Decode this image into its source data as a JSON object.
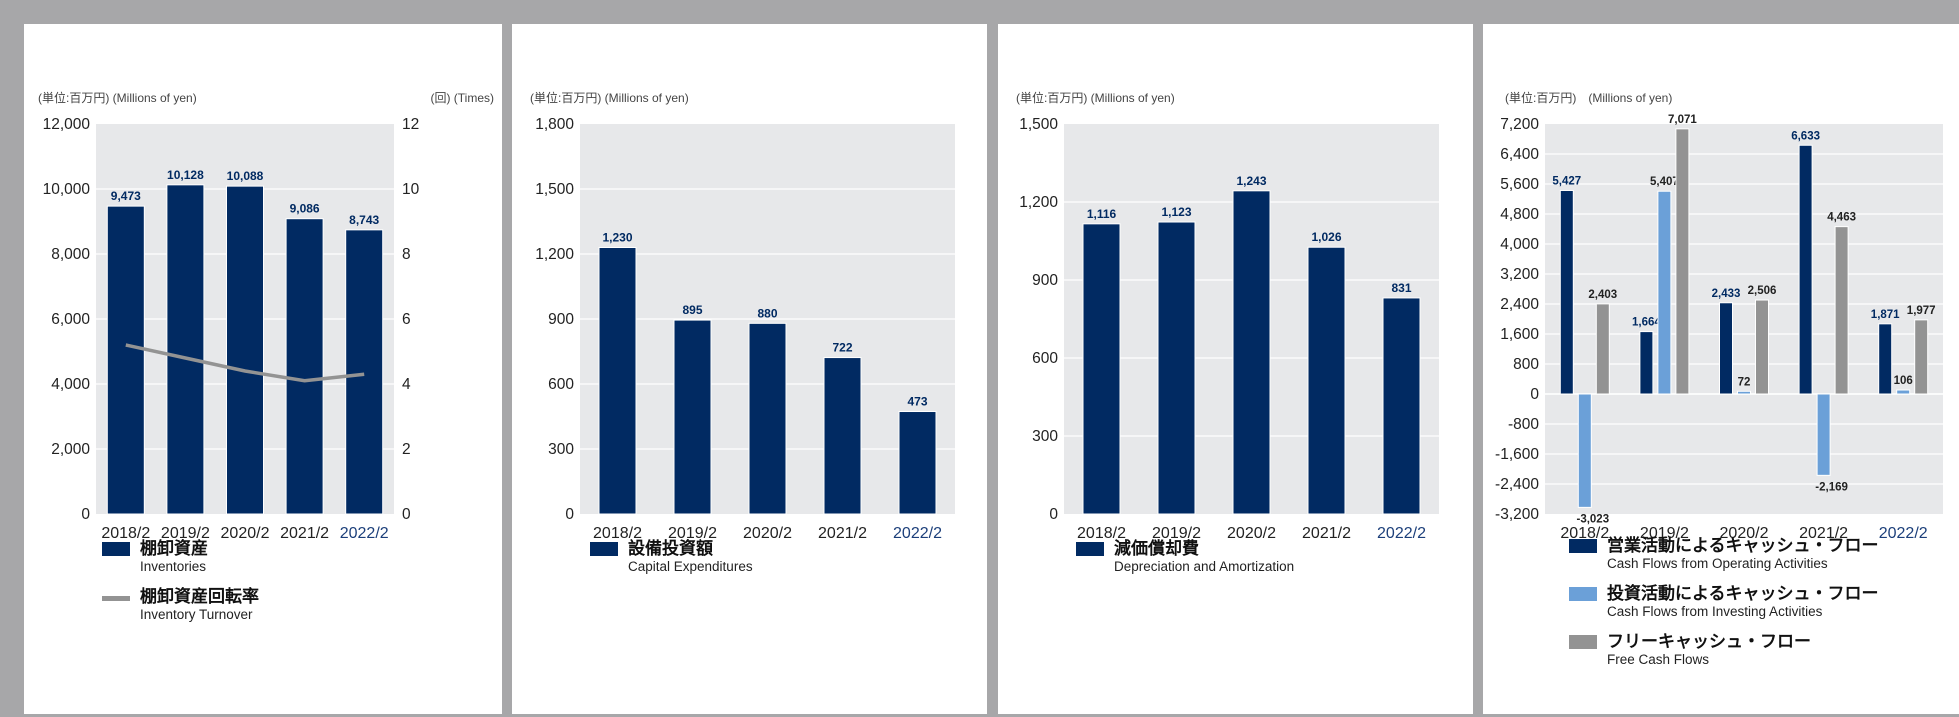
{
  "colors": {
    "navy": "#012a62",
    "lightblue": "#6ba0d8",
    "gray": "#939393",
    "plotbg": "#e7e8ea",
    "grid": "#ffffff",
    "highlight": "#1c3f7a"
  },
  "chart_data": [
    {
      "type": "bar",
      "unit_label": "(単位:百万円) (Millions of yen)",
      "unit_label_right": "(回) (Times)",
      "categories": [
        "2018/2",
        "2019/2",
        "2020/2",
        "2021/2",
        "2022/2"
      ],
      "highlight_category_index": 4,
      "ylim": [
        0,
        12000
      ],
      "yticks": [
        0,
        2000,
        4000,
        6000,
        8000,
        10000,
        12000
      ],
      "ytick_labels": [
        "0",
        "2,000",
        "4,000",
        "6,000",
        "8,000",
        "10,000",
        "12,000"
      ],
      "y2lim": [
        0,
        12
      ],
      "y2ticks": [
        0,
        2,
        4,
        6,
        8,
        10,
        12
      ],
      "y2tick_labels": [
        "0",
        "2",
        "4",
        "6",
        "8",
        "10",
        "12"
      ],
      "series": [
        {
          "name": "棚卸資産",
          "name_en": "Inventories",
          "type": "bar",
          "color_key": "navy",
          "values": [
            9473,
            10128,
            10088,
            9086,
            8743
          ],
          "labels": [
            "9,473",
            "10,128",
            "10,088",
            "9,086",
            "8,743"
          ]
        },
        {
          "name": "棚卸資産回転率",
          "name_en": "Inventory Turnover",
          "type": "line",
          "axis": "right",
          "color_key": "gray",
          "values": [
            5.2,
            4.8,
            4.4,
            4.1,
            4.3
          ]
        }
      ]
    },
    {
      "type": "bar",
      "unit_label": "(単位:百万円) (Millions of yen)",
      "categories": [
        "2018/2",
        "2019/2",
        "2020/2",
        "2021/2",
        "2022/2"
      ],
      "highlight_category_index": 4,
      "ylim": [
        0,
        1800
      ],
      "yticks": [
        0,
        300,
        600,
        900,
        1200,
        1500,
        1800
      ],
      "ytick_labels": [
        "0",
        "300",
        "600",
        "900",
        "1,200",
        "1,500",
        "1,800"
      ],
      "series": [
        {
          "name": "設備投資額",
          "name_en": "Capital Expenditures",
          "type": "bar",
          "color_key": "navy",
          "values": [
            1230,
            895,
            880,
            722,
            473
          ],
          "labels": [
            "1,230",
            "895",
            "880",
            "722",
            "473"
          ]
        }
      ]
    },
    {
      "type": "bar",
      "unit_label": "(単位:百万円) (Millions of yen)",
      "categories": [
        "2018/2",
        "2019/2",
        "2020/2",
        "2021/2",
        "2022/2"
      ],
      "highlight_category_index": 4,
      "ylim": [
        0,
        1500
      ],
      "yticks": [
        0,
        300,
        600,
        900,
        1200,
        1500
      ],
      "ytick_labels": [
        "0",
        "300",
        "600",
        "900",
        "1,200",
        "1,500"
      ],
      "series": [
        {
          "name": "減価償却費",
          "name_en": "Depreciation and Amortization",
          "type": "bar",
          "color_key": "navy",
          "values": [
            1116,
            1123,
            1243,
            1026,
            831
          ],
          "labels": [
            "1,116",
            "1,123",
            "1,243",
            "1,026",
            "831"
          ]
        }
      ]
    },
    {
      "type": "bar",
      "unit_label": "(単位:百万円)　(Millions of yen)",
      "categories": [
        "2018/2",
        "2019/2",
        "2020/2",
        "2021/2",
        "2022/2"
      ],
      "highlight_category_index": 4,
      "ylim": [
        -3200,
        7200
      ],
      "yticks": [
        -3200,
        -2400,
        -1600,
        -800,
        0,
        800,
        1600,
        2400,
        3200,
        4000,
        4800,
        5600,
        6400,
        7200
      ],
      "ytick_labels": [
        "-3,200",
        "-2,400",
        "-1,600",
        "-800",
        "0",
        "800",
        "1,600",
        "2,400",
        "3,200",
        "4,000",
        "4,800",
        "5,600",
        "6,400",
        "7,200"
      ],
      "series": [
        {
          "name": "営業活動によるキャッシュ・フロー",
          "name_en": "Cash Flows from Operating Activities",
          "type": "bar",
          "color_key": "navy",
          "values": [
            5427,
            1664,
            2433,
            6633,
            1871
          ],
          "labels": [
            "5,427",
            "1,664",
            "2,433",
            "6,633",
            "1,871"
          ]
        },
        {
          "name": "投資活動によるキャッシュ・フロー",
          "name_en": "Cash Flows from Investing Activities",
          "type": "bar",
          "color_key": "lightblue",
          "values": [
            -3023,
            5407,
            72,
            -2169,
            106
          ],
          "labels": [
            "-3,023",
            "5,407",
            "72",
            "-2,169",
            "106"
          ]
        },
        {
          "name": "フリーキャッシュ・フロー",
          "name_en": "Free Cash Flows",
          "type": "bar",
          "color_key": "gray",
          "values": [
            2403,
            7071,
            2506,
            4463,
            1977
          ],
          "labels": [
            "2,403",
            "7,071",
            "2,506",
            "4,463",
            "1,977"
          ]
        }
      ]
    }
  ]
}
